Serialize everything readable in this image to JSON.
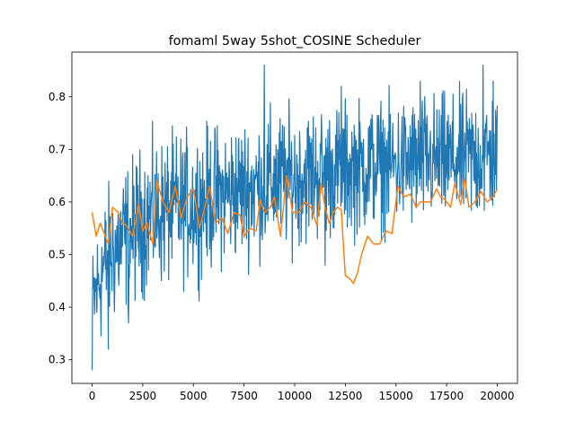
{
  "chart_data": {
    "type": "line",
    "title": "fomaml 5way 5shot_COSINE Scheduler",
    "xlabel": "",
    "ylabel": "",
    "xlim": [
      -1000,
      21000
    ],
    "ylim": [
      0.255,
      0.885
    ],
    "x_ticks": [
      0,
      2500,
      5000,
      7500,
      10000,
      12500,
      15000,
      17500,
      20000
    ],
    "x_tick_labels": [
      "0",
      "2500",
      "5000",
      "7500",
      "10000",
      "12500",
      "15000",
      "17500",
      "20000"
    ],
    "y_ticks": [
      0.3,
      0.4,
      0.5,
      0.6,
      0.7,
      0.8
    ],
    "y_tick_labels": [
      "0.3",
      "0.4",
      "0.5",
      "0.6",
      "0.7",
      "0.8"
    ],
    "grid": false,
    "legend": "none",
    "series": [
      {
        "color": "#1f77b4",
        "style": "dense noisy trace (per-iteration)",
        "band": {
          "x": [
            0,
            500,
            1000,
            1500,
            2000,
            2500,
            3000,
            4000,
            5000,
            6000,
            7000,
            8000,
            9000,
            10000,
            11000,
            12000,
            13000,
            14000,
            15000,
            16000,
            17000,
            18000,
            19000,
            20000
          ],
          "low": [
            0.3,
            0.35,
            0.38,
            0.4,
            0.42,
            0.44,
            0.45,
            0.46,
            0.47,
            0.49,
            0.5,
            0.51,
            0.52,
            0.53,
            0.54,
            0.55,
            0.55,
            0.56,
            0.56,
            0.56,
            0.57,
            0.57,
            0.57,
            0.58
          ],
          "high": [
            0.5,
            0.59,
            0.63,
            0.65,
            0.67,
            0.69,
            0.7,
            0.71,
            0.72,
            0.73,
            0.74,
            0.75,
            0.76,
            0.76,
            0.77,
            0.77,
            0.78,
            0.78,
            0.78,
            0.79,
            0.79,
            0.79,
            0.8,
            0.8
          ]
        },
        "spikes": [
          {
            "x": 0,
            "y": 0.28
          },
          {
            "x": 800,
            "y": 0.32
          },
          {
            "x": 1800,
            "y": 0.37
          },
          {
            "x": 8500,
            "y": 0.86
          },
          {
            "x": 12300,
            "y": 0.82
          },
          {
            "x": 16200,
            "y": 0.83
          },
          {
            "x": 19300,
            "y": 0.86
          },
          {
            "x": 19800,
            "y": 0.83
          },
          {
            "x": 11500,
            "y": 0.48
          }
        ]
      },
      {
        "color": "#ff7f0e",
        "style": "line",
        "x": [
          0,
          200,
          400,
          600,
          800,
          1000,
          1300,
          1500,
          1700,
          2000,
          2300,
          2500,
          2700,
          3000,
          3200,
          3500,
          3800,
          4100,
          4400,
          4700,
          5000,
          5300,
          5500,
          5800,
          6100,
          6400,
          6700,
          7000,
          7300,
          7500,
          7800,
          8100,
          8300,
          8500,
          8800,
          9000,
          9300,
          9600,
          9900,
          10200,
          10500,
          10800,
          11100,
          11300,
          11500,
          11700,
          11900,
          12100,
          12300,
          12500,
          12700,
          12900,
          13100,
          13300,
          13600,
          13900,
          14200,
          14500,
          14800,
          15100,
          15400,
          15700,
          16000,
          16200,
          16400,
          16700,
          17000,
          17200,
          17400,
          17700,
          17900,
          18200,
          18400,
          18600,
          18900,
          19200,
          19500,
          19800,
          20000
        ],
        "y": [
          0.58,
          0.535,
          0.56,
          0.54,
          0.52,
          0.59,
          0.58,
          0.56,
          0.555,
          0.535,
          0.595,
          0.545,
          0.56,
          0.52,
          0.64,
          0.6,
          0.58,
          0.63,
          0.57,
          0.61,
          0.625,
          0.55,
          0.58,
          0.63,
          0.56,
          0.57,
          0.54,
          0.58,
          0.575,
          0.535,
          0.55,
          0.545,
          0.605,
          0.58,
          0.59,
          0.61,
          0.535,
          0.65,
          0.58,
          0.58,
          0.6,
          0.59,
          0.555,
          0.635,
          0.59,
          0.56,
          0.58,
          0.59,
          0.585,
          0.46,
          0.455,
          0.445,
          0.465,
          0.5,
          0.535,
          0.52,
          0.52,
          0.545,
          0.54,
          0.63,
          0.61,
          0.615,
          0.59,
          0.6,
          0.6,
          0.6,
          0.625,
          0.61,
          0.605,
          0.59,
          0.635,
          0.595,
          0.645,
          0.59,
          0.6,
          0.62,
          0.6,
          0.61,
          0.625
        ]
      }
    ]
  }
}
